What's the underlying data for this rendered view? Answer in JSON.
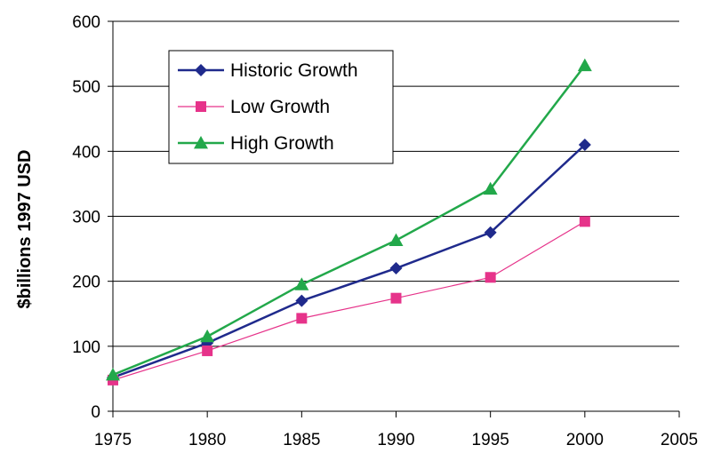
{
  "chart_data": {
    "type": "line",
    "title": "",
    "xlabel": "",
    "ylabel": "$billions 1997 USD",
    "xlim": [
      1975,
      2005
    ],
    "ylim": [
      0,
      600
    ],
    "x_ticks": [
      1975,
      1980,
      1985,
      1990,
      1995,
      2000,
      2005
    ],
    "y_ticks": [
      0,
      100,
      200,
      300,
      400,
      500,
      600
    ],
    "grid": "horizontal",
    "legend_position": "top-left",
    "series": [
      {
        "name": "Historic Growth",
        "color": "#1f2a8c",
        "marker": "diamond",
        "points": [
          [
            1975,
            52
          ],
          [
            1980,
            105
          ],
          [
            1985,
            170
          ],
          [
            1990,
            220
          ],
          [
            1995,
            275
          ],
          [
            2000,
            410
          ]
        ]
      },
      {
        "name": "Low Growth",
        "color": "#e6338a",
        "marker": "square",
        "points": [
          [
            1975,
            48
          ],
          [
            1980,
            93
          ],
          [
            1985,
            143
          ],
          [
            1990,
            174
          ],
          [
            1995,
            206
          ],
          [
            2000,
            292
          ]
        ]
      },
      {
        "name": "High Growth",
        "color": "#22a84a",
        "marker": "triangle",
        "points": [
          [
            1975,
            56
          ],
          [
            1980,
            115
          ],
          [
            1985,
            195
          ],
          [
            1990,
            263
          ],
          [
            1995,
            342
          ],
          [
            2000,
            532
          ]
        ]
      }
    ]
  }
}
